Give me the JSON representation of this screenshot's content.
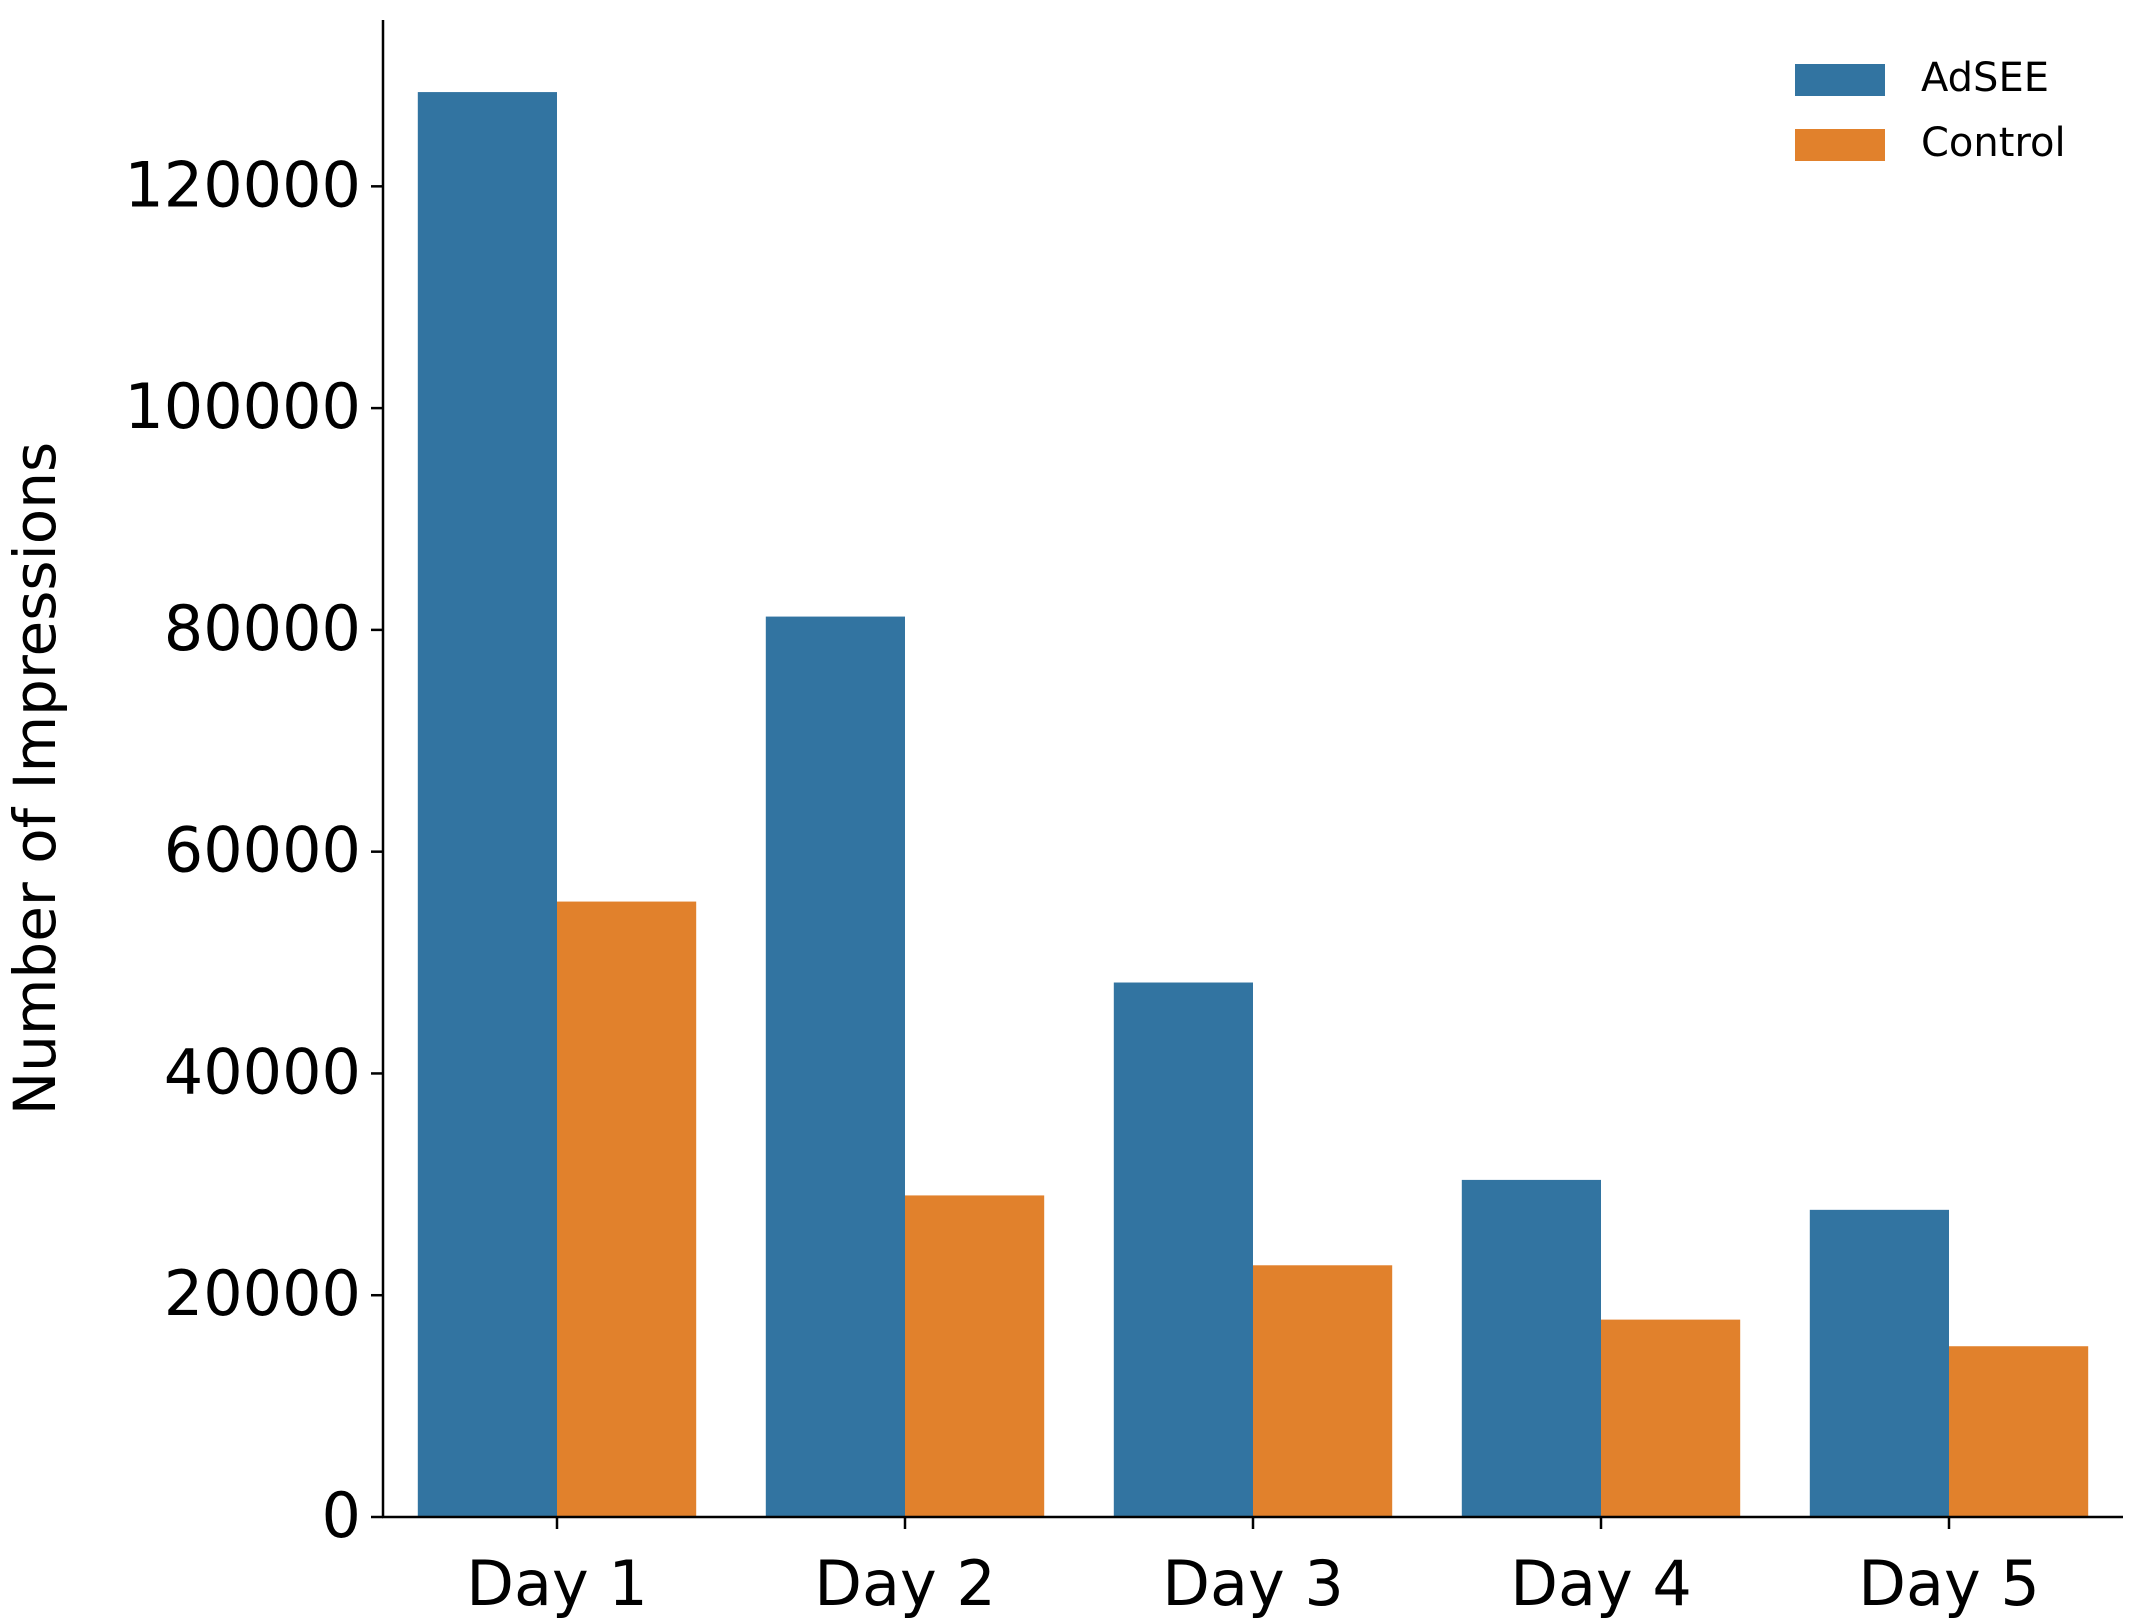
{
  "chart_data": {
    "type": "bar",
    "title": "",
    "xlabel": "",
    "ylabel": "Number of Impressions",
    "categories": [
      "Day 1",
      "Day 2",
      "Day 3",
      "Day 4",
      "Day 5"
    ],
    "series": [
      {
        "name": "AdSEE",
        "color": "#3274a1",
        "values": [
          128500,
          81200,
          48200,
          30400,
          27700
        ]
      },
      {
        "name": "Control",
        "color": "#e1812c",
        "values": [
          55500,
          29000,
          22700,
          17800,
          15400
        ]
      }
    ],
    "ylim": [
      0,
      135000
    ],
    "yticks": [
      0,
      20000,
      40000,
      60000,
      80000,
      100000,
      120000
    ],
    "ytick_labels": [
      "0",
      "20000",
      "40000",
      "60000",
      "80000",
      "100000",
      "120000"
    ],
    "grid": false,
    "legend": "top-right"
  }
}
